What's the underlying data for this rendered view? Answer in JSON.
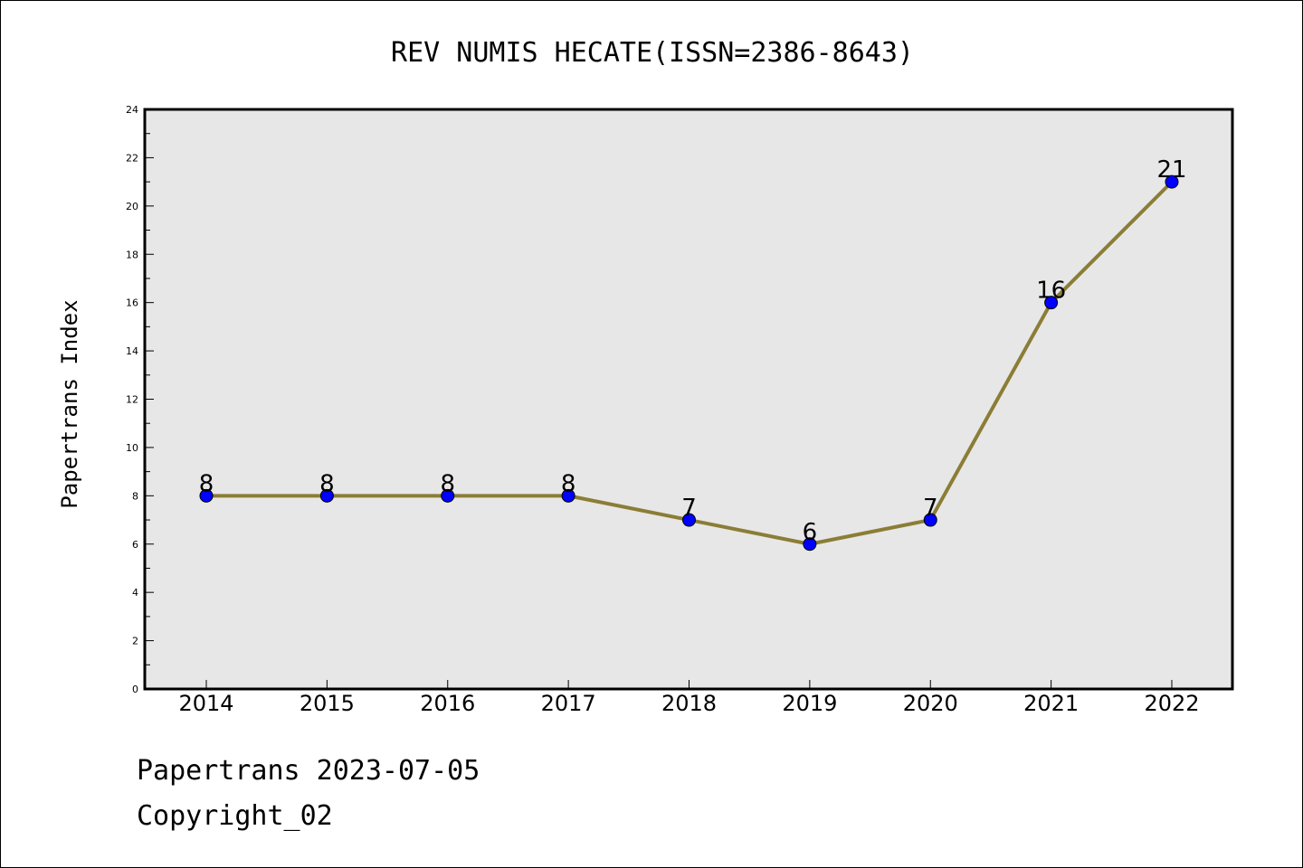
{
  "chart_data": {
    "type": "line",
    "title": "REV NUMIS HECATE(ISSN=2386-8643)",
    "xlabel": "",
    "ylabel": "Papertrans Index",
    "categories": [
      "2014",
      "2015",
      "2016",
      "2017",
      "2018",
      "2019",
      "2020",
      "2021",
      "2022"
    ],
    "series": [
      {
        "values": [
          8,
          8,
          8,
          8,
          7,
          6,
          7,
          16,
          21
        ]
      }
    ],
    "data_labels": [
      "8",
      "8",
      "8",
      "8",
      "7",
      "6",
      "7",
      "16",
      "21"
    ],
    "ylim": [
      0,
      24
    ],
    "yticks": [
      0,
      2,
      4,
      6,
      8,
      10,
      12,
      14,
      16,
      18,
      20,
      22,
      24
    ],
    "ytick_labels": [
      "0",
      "2",
      "4",
      "6",
      "8",
      "10",
      "12",
      "14",
      "16",
      "18",
      "20",
      "22",
      "24"
    ],
    "grid": false,
    "colors": {
      "line": "#8B7D35",
      "marker": "#0000FF",
      "plot_background": "#E7E7E7"
    }
  },
  "footer": {
    "date_line": "Papertrans 2023-07-05",
    "copyright": "Copyright_02"
  }
}
